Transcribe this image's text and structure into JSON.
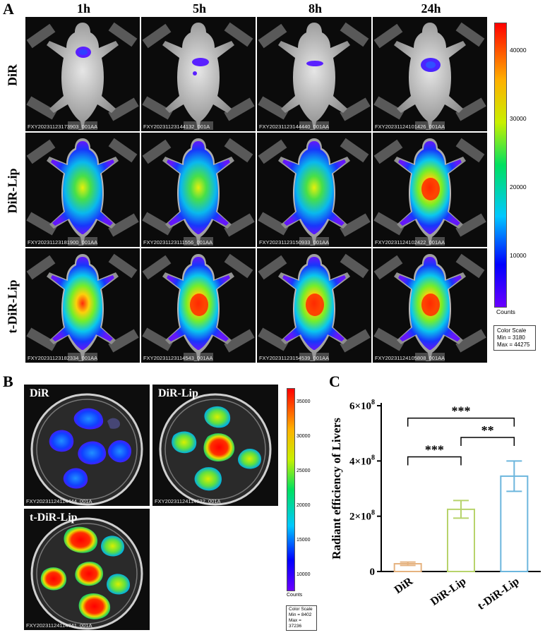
{
  "panel_a": {
    "letter": "A",
    "columns": [
      "1h",
      "5h",
      "8h",
      "24h"
    ],
    "rows": [
      {
        "label": "DiR",
        "captions": [
          "FXY20231123173903_001AA",
          "FXY20231123144132_001A",
          "FXY20231123144440_001AA",
          "FXY20231124101426_001AA"
        ]
      },
      {
        "label": "DiR-Lip",
        "captions": [
          "FXY20231123181900_001AA",
          "FXY20231123111556_001AA",
          "FXY20231123150933_001AA",
          "FXY20231124102422_001AA"
        ]
      },
      {
        "label": "t-DiR-Lip",
        "captions": [
          "FXY20231123182334_001AA",
          "FXY20231123114543_001AA",
          "FXY20231123154539_001AA",
          "FXY20231124105808_001AA"
        ]
      }
    ],
    "colorbar": {
      "ticks": [
        "40000",
        "30000",
        "20000",
        "10000"
      ],
      "units": "Counts"
    },
    "color_scale": {
      "title": "Color Scale",
      "min": "Min = 3180",
      "max": "Max = 44275"
    }
  },
  "panel_b": {
    "letter": "B",
    "dishes": [
      {
        "label": "DiR",
        "caption": "FXY20231124114444_001A"
      },
      {
        "label": "DiR-Lip",
        "caption": "FXY20231124114622_001A"
      },
      {
        "label": "t-DiR-Lip",
        "caption": "FXY20231124114741_001A"
      }
    ],
    "colorbar": {
      "ticks": [
        "35000",
        "30000",
        "25000",
        "20000",
        "15000",
        "10000"
      ],
      "units": "Counts"
    },
    "color_scale": {
      "title": "Color Scale",
      "min": "Min = 8402",
      "max": "Max = 37236"
    }
  },
  "panel_c": {
    "letter": "C"
  },
  "chart_data": {
    "type": "bar",
    "categories": [
      "DiR",
      "DiR-Lip",
      "t-DiR-Lip"
    ],
    "values": [
      0.28,
      2.25,
      3.45
    ],
    "errors": [
      0.06,
      0.32,
      0.55
    ],
    "ylabel": "Radiant efficiency of Livers",
    "ylim": [
      0,
      6
    ],
    "y_ticks": [
      0,
      2,
      4,
      6
    ],
    "y_tick_labels": [
      "0",
      "2×10",
      "4×10",
      "6×10"
    ],
    "y_tick_exponent": "8",
    "bar_colors": [
      "#e5b27f",
      "#b7d36b",
      "#6cb6dd"
    ],
    "significance": [
      {
        "from": 0,
        "to": 2,
        "label": "***"
      },
      {
        "from": 1,
        "to": 2,
        "label": "**"
      },
      {
        "from": 0,
        "to": 1,
        "label": "***"
      }
    ]
  }
}
